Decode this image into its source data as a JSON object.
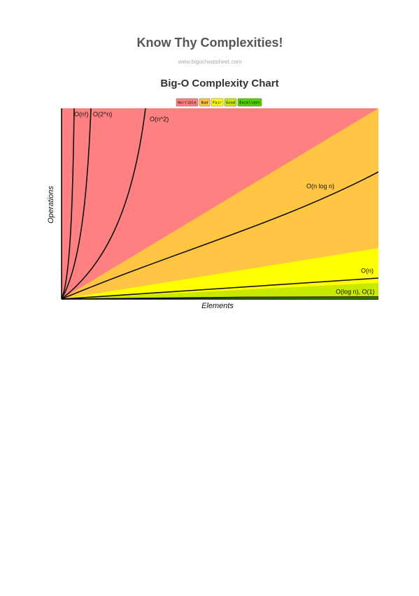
{
  "header": {
    "title": "Know Thy Complexities!",
    "url": "www.bigocheatsheet.com"
  },
  "chart": {
    "title": "Big-O Complexity Chart",
    "legend": [
      {
        "label": "Horrible",
        "color": "#ff8080"
      },
      {
        "label": "Bad",
        "color": "#ffc543"
      },
      {
        "label": "Fair",
        "color": "#ffff00"
      },
      {
        "label": "Good",
        "color": "#c8ea00"
      },
      {
        "label": "Excellent",
        "color": "#53d000"
      }
    ],
    "curve_labels": [
      "O(n!)",
      "O(2^n)",
      "O(n^2)",
      "O(n log n)",
      "O(n)",
      "O(log n), O(1)"
    ],
    "x_label": "Elements",
    "y_label": "Operations"
  }
}
